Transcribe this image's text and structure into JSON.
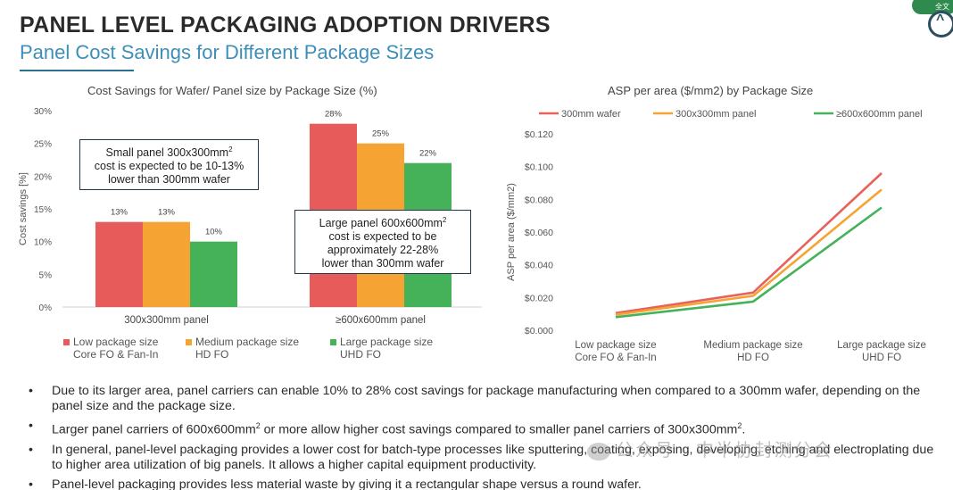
{
  "header": {
    "title": "PANEL LEVEL PACKAGING ADOPTION DRIVERS",
    "subtitle": "Panel Cost Savings for Different Package Sizes",
    "corner_badge": "全文"
  },
  "colors": {
    "red": "#e85b5b",
    "orange": "#f5a333",
    "green": "#45b25a",
    "title_accent": "#3d8fb8"
  },
  "chart_data": [
    {
      "type": "bar",
      "title": "Cost Savings for Wafer/ Panel size by Package Size (%)",
      "ylabel": "Cost savings [%]",
      "ylim": [
        0,
        30
      ],
      "y_ticks": [
        "0%",
        "5%",
        "10%",
        "15%",
        "20%",
        "25%",
        "30%"
      ],
      "categories": [
        "300x300mm panel",
        "≥600x600mm panel"
      ],
      "series": [
        {
          "name": "Low package size Core FO & Fan-In",
          "legend_line1": "Low package size",
          "legend_line2": "Core FO & Fan-In",
          "values": [
            13,
            28
          ],
          "labels": [
            "13%",
            "28%"
          ],
          "color": "#e85b5b"
        },
        {
          "name": "Medium package size HD FO",
          "legend_line1": "Medium package size",
          "legend_line2": "HD FO",
          "values": [
            13,
            25
          ],
          "labels": [
            "13%",
            "25%"
          ],
          "color": "#f5a333"
        },
        {
          "name": "Large package size UHD FO",
          "legend_line1": "Large package size",
          "legend_line2": "UHD FO",
          "values": [
            10,
            22
          ],
          "labels": [
            "10%",
            "22%"
          ],
          "color": "#45b25a"
        }
      ],
      "legend": "bottom",
      "annotations": {
        "small_panel": {
          "line1_pre": "Small panel 300x300mm",
          "sup": "2",
          "line2": "cost is expected to be 10-13%",
          "line3": "lower than 300mm wafer"
        },
        "large_panel": {
          "line1_pre": "Large panel 600x600mm",
          "sup": "2",
          "line2": "cost is expected to be",
          "line3": "approximately 22-28%",
          "line4": "lower than 300mm wafer"
        }
      }
    },
    {
      "type": "line",
      "title": "ASP per area ($/mm2) by Package Size",
      "ylabel": "ASP per area ($/mm2)",
      "ylim": [
        0,
        0.12
      ],
      "y_ticks": [
        "$0.000",
        "$0.020",
        "$0.040",
        "$0.060",
        "$0.080",
        "$0.100",
        "$0.120"
      ],
      "x": [
        "Low package size Core FO & Fan-In",
        "Medium package size HD FO",
        "Large package size UHD FO"
      ],
      "x_lines": [
        [
          "Low package size",
          "Core FO & Fan-In"
        ],
        [
          "Medium package size",
          "HD FO"
        ],
        [
          "Large package size",
          "UHD FO"
        ]
      ],
      "series": [
        {
          "name": "300mm wafer",
          "values": [
            0.0105,
            0.023,
            0.096
          ],
          "color": "#e8625a"
        },
        {
          "name": "300x300mm panel",
          "values": [
            0.0095,
            0.021,
            0.086
          ],
          "color": "#f5a333"
        },
        {
          "name": "≥600x600mm panel",
          "values": [
            0.008,
            0.0175,
            0.075
          ],
          "color": "#45b25a"
        }
      ],
      "legend": "top",
      "grid": false
    }
  ],
  "bullets": [
    {
      "text": "Due to its larger area, panel carriers can enable 10% to 28% cost savings for package manufacturing when compared to a 300mm wafer, depending on the panel size and the package size."
    },
    {
      "pre": "Larger panel carriers of 600x600mm",
      "sup1": "2",
      "mid": " or more allow higher cost savings compared to smaller panel carriers of 300x300mm",
      "sup2": "2",
      "post": "."
    },
    {
      "text": "In general, panel-level packaging provides a lower cost for batch-type processes like sputtering, coating, exposing, developing, etching and electroplating due to higher area utilization of big panels. It allows a higher capital equipment productivity."
    },
    {
      "text": "Panel-level packaging provides less material waste by giving it a rectangular shape versus a round wafer."
    }
  ],
  "bullet_symbol": "•",
  "watermark": "公众号 · 中半协封测分会"
}
